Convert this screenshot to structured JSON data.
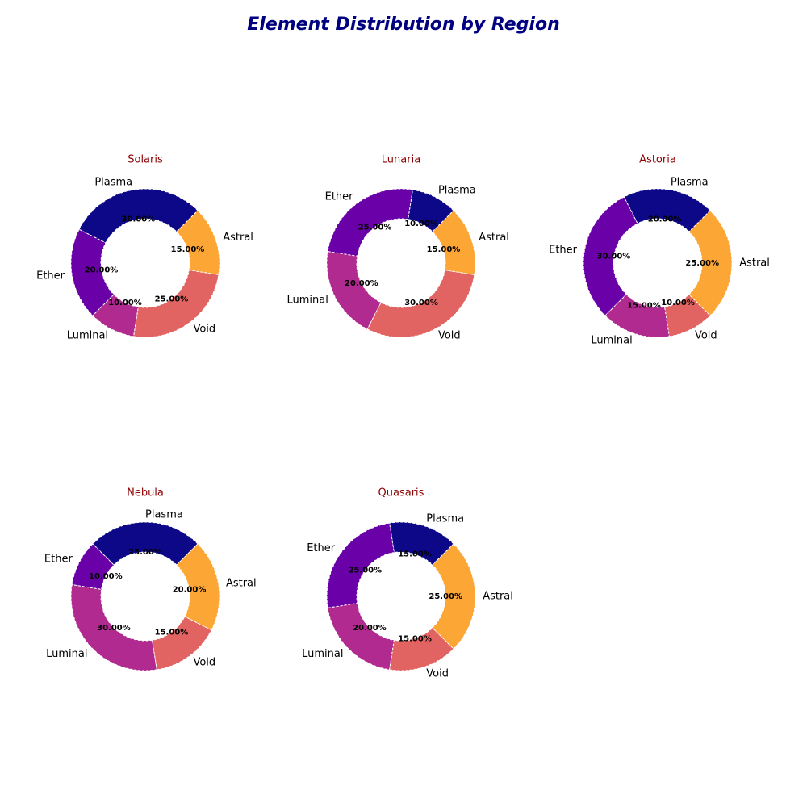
{
  "title": "Element Distribution by Region",
  "chart_data": [
    {
      "type": "pie",
      "title": "Solaris",
      "categories": [
        "Plasma",
        "Ether",
        "Luminal",
        "Void",
        "Astral"
      ],
      "values": [
        30,
        20,
        10,
        25,
        15
      ],
      "value_labels": [
        "30.00%",
        "20.00%",
        "10.00%",
        "25.00%",
        "15.00%"
      ],
      "colors": [
        "#0d0887",
        "#6a00a8",
        "#b12a90",
        "#e16462",
        "#fca636"
      ]
    },
    {
      "type": "pie",
      "title": "Lunaria",
      "categories": [
        "Plasma",
        "Ether",
        "Luminal",
        "Void",
        "Astral"
      ],
      "values": [
        10,
        25,
        20,
        30,
        15
      ],
      "value_labels": [
        "10.00%",
        "25.00%",
        "20.00%",
        "30.00%",
        "15.00%"
      ],
      "colors": [
        "#0d0887",
        "#6a00a8",
        "#b12a90",
        "#e16462",
        "#fca636"
      ]
    },
    {
      "type": "pie",
      "title": "Astoria",
      "categories": [
        "Plasma",
        "Ether",
        "Luminal",
        "Void",
        "Astral"
      ],
      "values": [
        20,
        30,
        15,
        10,
        25
      ],
      "value_labels": [
        "20.00%",
        "30.00%",
        "15.00%",
        "10.00%",
        "25.00%"
      ],
      "colors": [
        "#0d0887",
        "#6a00a8",
        "#b12a90",
        "#e16462",
        "#fca636"
      ]
    },
    {
      "type": "pie",
      "title": "Nebula",
      "categories": [
        "Plasma",
        "Ether",
        "Luminal",
        "Void",
        "Astral"
      ],
      "values": [
        25,
        10,
        30,
        15,
        20
      ],
      "value_labels": [
        "25.00%",
        "10.00%",
        "30.00%",
        "15.00%",
        "20.00%"
      ],
      "colors": [
        "#0d0887",
        "#6a00a8",
        "#b12a90",
        "#e16462",
        "#fca636"
      ]
    },
    {
      "type": "pie",
      "title": "Quasaris",
      "categories": [
        "Plasma",
        "Ether",
        "Luminal",
        "Void",
        "Astral"
      ],
      "values": [
        15,
        25,
        20,
        15,
        25
      ],
      "value_labels": [
        "15.00%",
        "25.00%",
        "20.00%",
        "15.00%",
        "25.00%"
      ],
      "colors": [
        "#0d0887",
        "#6a00a8",
        "#b12a90",
        "#e16462",
        "#fca636"
      ]
    }
  ]
}
